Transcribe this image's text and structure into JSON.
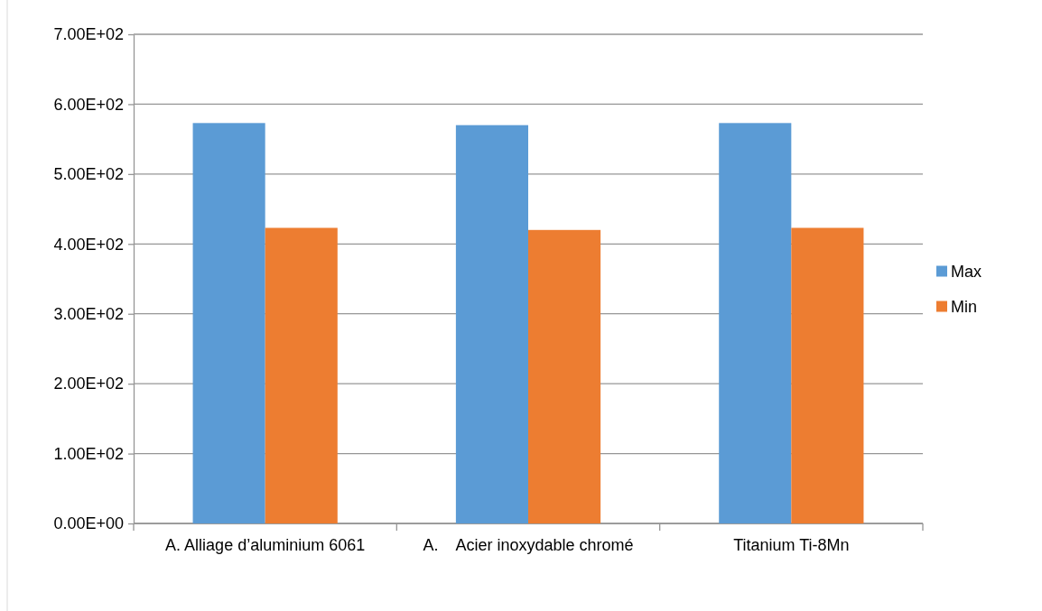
{
  "chart_data": {
    "type": "bar",
    "categories": [
      "A. Alliage d’aluminium 6061",
      "A.    Acier inoxydable chromé",
      "Titanium Ti-8Mn"
    ],
    "series": [
      {
        "name": "Max",
        "color": "#5b9bd5",
        "values": [
          573,
          570,
          573
        ]
      },
      {
        "name": "Min",
        "color": "#ed7d31",
        "values": [
          423,
          420,
          423
        ]
      }
    ],
    "ylim": [
      0,
      700
    ],
    "yticks": [
      {
        "value": 0,
        "label": "0.00E+00"
      },
      {
        "value": 100,
        "label": "1.00E+02"
      },
      {
        "value": 200,
        "label": "2.00E+02"
      },
      {
        "value": 300,
        "label": "3.00E+02"
      },
      {
        "value": 400,
        "label": "4.00E+02"
      },
      {
        "value": 500,
        "label": "5.00E+02"
      },
      {
        "value": 600,
        "label": "6.00E+02"
      },
      {
        "value": 700,
        "label": "7.00E+02"
      }
    ],
    "grid": "y",
    "legend": "right"
  }
}
